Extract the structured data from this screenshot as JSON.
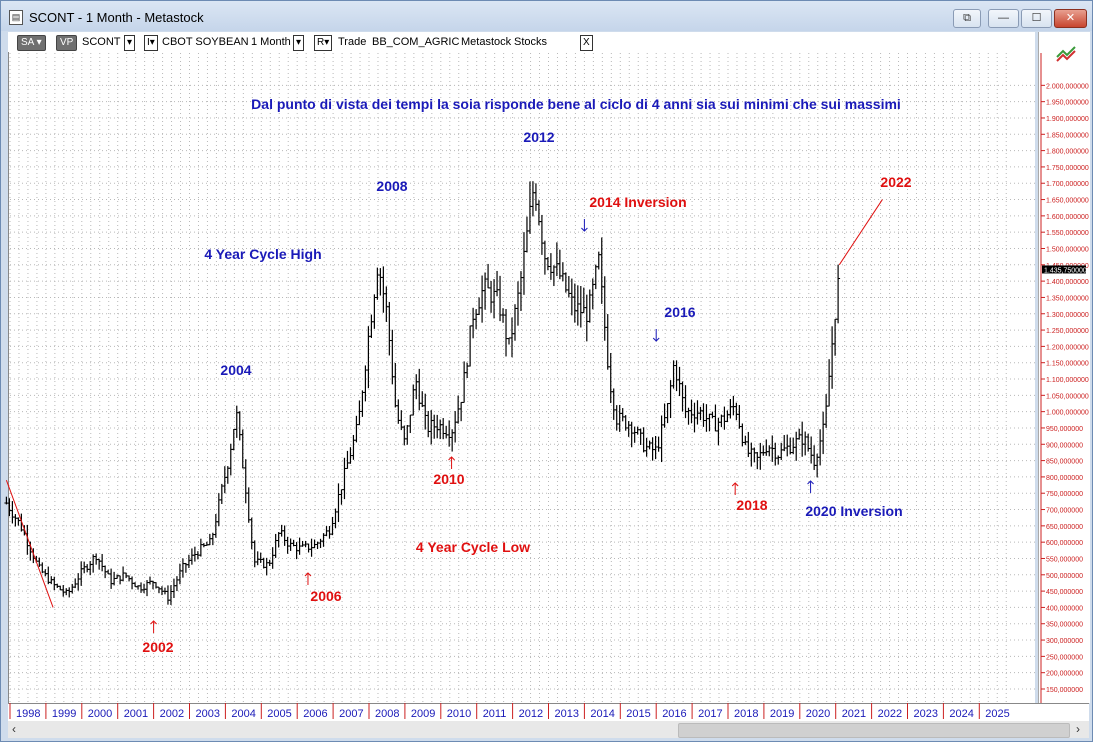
{
  "window": {
    "title": "SCONT - 1 Month - Metastock"
  },
  "window_controls": {
    "restore_glyph": "⧉",
    "minimize_glyph": "—",
    "maximize_glyph": "☐",
    "close_glyph": "✕"
  },
  "toolbar": {
    "sa_label": "SA",
    "vp_label": "VP",
    "symbol": "SCONT",
    "security_name": "CBOT SOYBEAN",
    "periodicity": "1 Month",
    "r_label": "R",
    "trade_label": "Trade",
    "broker": "BB_COM_AGRIC",
    "source": "Metastock",
    "category": "Stocks",
    "close_glyph": "X"
  },
  "chart_data": {
    "type": "bar",
    "subtype": "ohlc",
    "x_axis_years": [
      "1998",
      "1999",
      "2000",
      "2001",
      "2002",
      "2003",
      "2004",
      "2005",
      "2006",
      "2007",
      "2008",
      "2009",
      "2010",
      "2011",
      "2012",
      "2013",
      "2014",
      "2015",
      "2016",
      "2017",
      "2018",
      "2019",
      "2020",
      "2021",
      "2022",
      "2023",
      "2024",
      "2025"
    ],
    "y_tick_labels": [
      "150,000000",
      "200,000000",
      "250,000000",
      "300,000000",
      "350,000000",
      "400,000000",
      "450,000000",
      "500,000000",
      "550,000000",
      "600,000000",
      "650,000000",
      "700,000000",
      "750,000000",
      "800,000000",
      "850,000000",
      "900,000000",
      "950,000000",
      "1.000,000000",
      "1.050,000000",
      "1.100,000000",
      "1.150,000000",
      "1.200,000000",
      "1.250,000000",
      "1.300,000000",
      "1.350,000000",
      "1.400,000000",
      "1.450,000000",
      "1.500,000000",
      "1.550,000000",
      "1.600,000000",
      "1.650,000000",
      "1.700,000000",
      "1.750,000000",
      "1.800,000000",
      "1.850,000000",
      "1.900,000000",
      "1.950,000000",
      "2.000,000000"
    ],
    "ylim": [
      150,
      2000
    ],
    "last_price_label": "1.435,750000",
    "last_price": 1435.75,
    "grid": true,
    "bar_color": "#000000",
    "anchors": [
      {
        "t": 1997.9,
        "v": 720
      },
      {
        "t": 1998.3,
        "v": 650
      },
      {
        "t": 1998.8,
        "v": 520
      },
      {
        "t": 1999.2,
        "v": 470
      },
      {
        "t": 1999.6,
        "v": 440
      },
      {
        "t": 2000.0,
        "v": 510
      },
      {
        "t": 2000.4,
        "v": 560
      },
      {
        "t": 2000.8,
        "v": 480
      },
      {
        "t": 2001.2,
        "v": 500
      },
      {
        "t": 2001.6,
        "v": 460
      },
      {
        "t": 2002.0,
        "v": 480
      },
      {
        "t": 2002.4,
        "v": 430
      },
      {
        "t": 2002.8,
        "v": 520
      },
      {
        "t": 2003.2,
        "v": 570
      },
      {
        "t": 2003.6,
        "v": 600
      },
      {
        "t": 2003.9,
        "v": 760
      },
      {
        "t": 2004.1,
        "v": 860
      },
      {
        "t": 2004.3,
        "v": 1000
      },
      {
        "t": 2004.55,
        "v": 780
      },
      {
        "t": 2004.8,
        "v": 540
      },
      {
        "t": 2005.2,
        "v": 530
      },
      {
        "t": 2005.5,
        "v": 630
      },
      {
        "t": 2005.8,
        "v": 590
      },
      {
        "t": 2006.1,
        "v": 580
      },
      {
        "t": 2006.5,
        "v": 590
      },
      {
        "t": 2006.9,
        "v": 640
      },
      {
        "t": 2007.3,
        "v": 800
      },
      {
        "t": 2007.7,
        "v": 960
      },
      {
        "t": 2007.95,
        "v": 1200
      },
      {
        "t": 2008.25,
        "v": 1460
      },
      {
        "t": 2008.5,
        "v": 1300
      },
      {
        "t": 2008.75,
        "v": 1000
      },
      {
        "t": 2009.0,
        "v": 900
      },
      {
        "t": 2009.3,
        "v": 1100
      },
      {
        "t": 2009.6,
        "v": 950
      },
      {
        "t": 2009.9,
        "v": 960
      },
      {
        "t": 2010.3,
        "v": 940
      },
      {
        "t": 2010.6,
        "v": 1060
      },
      {
        "t": 2010.9,
        "v": 1300
      },
      {
        "t": 2011.2,
        "v": 1380
      },
      {
        "t": 2011.6,
        "v": 1340
      },
      {
        "t": 2011.9,
        "v": 1200
      },
      {
        "t": 2012.2,
        "v": 1380
      },
      {
        "t": 2012.6,
        "v": 1700
      },
      {
        "t": 2012.9,
        "v": 1480
      },
      {
        "t": 2013.3,
        "v": 1420
      },
      {
        "t": 2013.7,
        "v": 1320
      },
      {
        "t": 2014.1,
        "v": 1300
      },
      {
        "t": 2014.4,
        "v": 1460
      },
      {
        "t": 2014.7,
        "v": 1100
      },
      {
        "t": 2014.9,
        "v": 980
      },
      {
        "t": 2015.3,
        "v": 960
      },
      {
        "t": 2015.7,
        "v": 890
      },
      {
        "t": 2016.0,
        "v": 880
      },
      {
        "t": 2016.3,
        "v": 1000
      },
      {
        "t": 2016.5,
        "v": 1150
      },
      {
        "t": 2016.8,
        "v": 1000
      },
      {
        "t": 2017.2,
        "v": 1000
      },
      {
        "t": 2017.6,
        "v": 960
      },
      {
        "t": 2017.9,
        "v": 980
      },
      {
        "t": 2018.2,
        "v": 1020
      },
      {
        "t": 2018.5,
        "v": 880
      },
      {
        "t": 2018.8,
        "v": 850
      },
      {
        "t": 2019.1,
        "v": 900
      },
      {
        "t": 2019.4,
        "v": 870
      },
      {
        "t": 2019.8,
        "v": 900
      },
      {
        "t": 2020.1,
        "v": 920
      },
      {
        "t": 2020.4,
        "v": 850
      },
      {
        "t": 2020.7,
        "v": 960
      },
      {
        "t": 2020.85,
        "v": 1150
      },
      {
        "t": 2021.0,
        "v": 1330
      },
      {
        "t": 2021.1,
        "v": 1420
      }
    ],
    "annotations": [
      {
        "text": "Dal punto di vista dei tempi la soia risponde bene al ciclo di 4 anni sia sui minimi che sui massimi",
        "color": "#1a1ab8"
      },
      {
        "text": "2012",
        "color": "#1a1ab8"
      },
      {
        "text": "2008",
        "color": "#1a1ab8"
      },
      {
        "text": "2014 Inversion",
        "color": "#e01010"
      },
      {
        "text": "2022",
        "color": "#e01010"
      },
      {
        "text": "4 Year Cycle High",
        "color": "#1a1ab8"
      },
      {
        "text": "2004",
        "color": "#1a1ab8"
      },
      {
        "text": "2016",
        "color": "#1a1ab8"
      },
      {
        "text": "2010",
        "color": "#e01010"
      },
      {
        "text": "2018",
        "color": "#e01010"
      },
      {
        "text": "2020 Inversion",
        "color": "#1a1ab8"
      },
      {
        "text": "4 Year Cycle Low",
        "color": "#e01010"
      },
      {
        "text": "2006",
        "color": "#e01010"
      },
      {
        "text": "2002",
        "color": "#e01010"
      }
    ],
    "arrows": [
      {
        "t": 2002.0,
        "dir": "up",
        "color": "#e01010"
      },
      {
        "t": 2006.3,
        "dir": "up",
        "color": "#e01010"
      },
      {
        "t": 2010.3,
        "dir": "up",
        "color": "#e01010"
      },
      {
        "t": 2014.0,
        "dir": "down",
        "color": "#1a1ab8"
      },
      {
        "t": 2016.0,
        "dir": "down",
        "color": "#1a1ab8"
      },
      {
        "t": 2018.2,
        "dir": "up",
        "color": "#e01010"
      },
      {
        "t": 2020.3,
        "dir": "up",
        "color": "#1a1ab8"
      }
    ],
    "trend_lines": [
      {
        "from": {
          "t": 1997.9,
          "v": 790
        },
        "to": {
          "t": 1999.2,
          "v": 400
        },
        "color": "#e01010"
      },
      {
        "from": {
          "t": 2021.1,
          "v": 1450
        },
        "to": {
          "t": 2022.3,
          "v": 1650
        },
        "color": "#e01010"
      }
    ]
  }
}
